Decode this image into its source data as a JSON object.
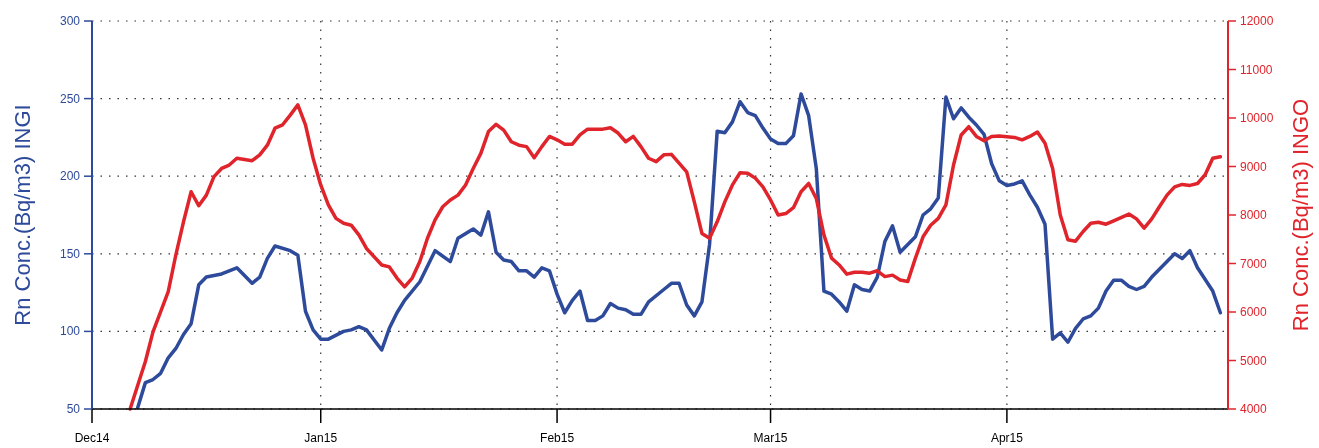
{
  "chart_data": {
    "type": "line",
    "ylabel": "Rn Conc.(Bq/m3) INGI",
    "y2label": "Rn Conc.(Bq/m3) INGO",
    "xlim": [
      "2014-12-02",
      "2015-04-30"
    ],
    "xticks": [
      {
        "value": "2014-12-02",
        "label": "Dec14"
      },
      {
        "value": "2015-01-01",
        "label": "Jan15"
      },
      {
        "value": "2015-02-01",
        "label": "Feb15"
      },
      {
        "value": "2015-03-01",
        "label": "Mar15"
      },
      {
        "value": "2015-04-01",
        "label": "Apr15"
      }
    ],
    "ylim": [
      50,
      300
    ],
    "yticks": [
      50,
      100,
      150,
      200,
      250,
      300
    ],
    "y2lim": [
      4000,
      12000
    ],
    "y2ticks": [
      4000,
      5000,
      6000,
      7000,
      8000,
      9000,
      10000,
      11000,
      12000
    ],
    "grid": true,
    "marker": "none",
    "line_style": "solid",
    "series": [
      {
        "color": "#2e4a9a",
        "x": [
          "2014-12-08",
          "2014-12-09",
          "2014-12-10",
          "2014-12-11",
          "2014-12-12",
          "2014-12-13",
          "2014-12-14",
          "2014-12-15",
          "2014-12-16",
          "2014-12-17",
          "2014-12-18",
          "2014-12-19",
          "2014-12-21",
          "2014-12-23",
          "2014-12-24",
          "2014-12-25",
          "2014-12-26",
          "2014-12-28",
          "2014-12-29",
          "2014-12-30",
          "2014-12-31",
          "2015-01-01",
          "2015-01-02",
          "2015-01-04",
          "2015-01-05",
          "2015-01-06",
          "2015-01-07",
          "2015-01-09",
          "2015-01-10",
          "2015-01-11",
          "2015-01-12",
          "2015-01-14",
          "2015-01-16",
          "2015-01-18",
          "2015-01-19",
          "2015-01-21",
          "2015-01-22",
          "2015-01-23",
          "2015-01-24",
          "2015-01-25",
          "2015-01-26",
          "2015-01-27",
          "2015-01-28",
          "2015-01-29",
          "2015-01-30",
          "2015-01-31",
          "2015-02-01",
          "2015-02-02",
          "2015-02-03",
          "2015-02-04",
          "2015-02-05",
          "2015-02-06",
          "2015-02-07",
          "2015-02-08",
          "2015-02-09",
          "2015-02-10",
          "2015-02-11",
          "2015-02-12",
          "2015-02-13",
          "2015-02-15",
          "2015-02-16",
          "2015-02-17",
          "2015-02-18",
          "2015-02-19",
          "2015-02-20",
          "2015-02-21",
          "2015-02-22",
          "2015-02-23",
          "2015-02-24",
          "2015-02-25",
          "2015-02-26",
          "2015-02-27",
          "2015-02-28",
          "2015-03-01",
          "2015-03-02",
          "2015-03-03",
          "2015-03-04",
          "2015-03-05",
          "2015-03-06",
          "2015-03-07",
          "2015-03-08",
          "2015-03-09",
          "2015-03-10",
          "2015-03-11",
          "2015-03-12",
          "2015-03-13",
          "2015-03-14",
          "2015-03-15",
          "2015-03-16",
          "2015-03-17",
          "2015-03-18",
          "2015-03-20",
          "2015-03-21",
          "2015-03-22",
          "2015-03-23",
          "2015-03-24",
          "2015-03-25",
          "2015-03-26",
          "2015-03-27",
          "2015-03-28",
          "2015-03-29",
          "2015-03-30",
          "2015-03-31",
          "2015-04-01",
          "2015-04-02",
          "2015-04-03",
          "2015-04-04",
          "2015-04-05",
          "2015-04-06",
          "2015-04-07",
          "2015-04-08",
          "2015-04-09",
          "2015-04-10",
          "2015-04-11",
          "2015-04-12",
          "2015-04-13",
          "2015-04-14",
          "2015-04-15",
          "2015-04-16",
          "2015-04-17",
          "2015-04-18",
          "2015-04-19",
          "2015-04-20",
          "2015-04-21",
          "2015-04-22",
          "2015-04-23",
          "2015-04-24",
          "2015-04-25",
          "2015-04-26",
          "2015-04-28",
          "2015-04-29"
        ],
        "values": [
          51,
          67,
          69,
          73,
          83,
          89,
          98,
          105,
          130,
          135,
          136,
          137,
          141,
          131,
          135,
          147,
          155,
          152,
          149,
          113,
          101,
          95,
          95,
          100,
          101,
          103,
          101,
          88,
          102,
          112,
          120,
          132,
          152,
          145,
          160,
          166,
          162,
          177,
          151,
          146,
          145,
          139,
          139,
          135,
          141,
          139,
          124,
          112,
          120,
          126,
          107,
          107,
          110,
          118,
          115,
          114,
          111,
          111,
          119,
          127,
          131,
          131,
          117,
          110,
          119,
          156,
          229,
          228,
          235,
          248,
          241,
          239,
          231,
          224,
          221,
          221,
          226,
          253,
          239,
          205,
          126,
          124,
          119,
          113,
          130,
          127,
          126,
          135,
          158,
          168,
          151,
          161,
          175,
          179,
          186,
          251,
          237,
          244,
          238,
          233,
          227,
          208,
          197,
          194,
          195,
          197,
          188,
          180,
          169,
          95,
          99,
          93,
          102,
          108,
          110,
          115,
          126,
          133,
          133,
          129,
          127,
          129,
          135,
          140,
          145,
          150,
          147,
          152,
          141,
          126,
          112
        ]
      },
      {
        "color": "#e0242b",
        "axis": "y2",
        "x": [
          "2014-12-07",
          "2014-12-09",
          "2014-12-10",
          "2014-12-12",
          "2014-12-13",
          "2014-12-14",
          "2014-12-15",
          "2014-12-16",
          "2014-12-17",
          "2014-12-18",
          "2014-12-19",
          "2014-12-20",
          "2014-12-21",
          "2014-12-23",
          "2014-12-24",
          "2014-12-25",
          "2014-12-26",
          "2014-12-27",
          "2014-12-28",
          "2014-12-29",
          "2014-12-30",
          "2014-12-31",
          "2015-01-01",
          "2015-01-02",
          "2015-01-03",
          "2015-01-04",
          "2015-01-05",
          "2015-01-06",
          "2015-01-07",
          "2015-01-09",
          "2015-01-10",
          "2015-01-11",
          "2015-01-12",
          "2015-01-13",
          "2015-01-14",
          "2015-01-15",
          "2015-01-16",
          "2015-01-17",
          "2015-01-18",
          "2015-01-19",
          "2015-01-20",
          "2015-01-21",
          "2015-01-22",
          "2015-01-23",
          "2015-01-24",
          "2015-01-25",
          "2015-01-26",
          "2015-01-27",
          "2015-01-28",
          "2015-01-29",
          "2015-01-30",
          "2015-01-31",
          "2015-02-01",
          "2015-02-02",
          "2015-02-03",
          "2015-02-04",
          "2015-02-05",
          "2015-02-07",
          "2015-02-08",
          "2015-02-09",
          "2015-02-10",
          "2015-02-11",
          "2015-02-12",
          "2015-02-13",
          "2015-02-14",
          "2015-02-15",
          "2015-02-16",
          "2015-02-18",
          "2015-02-19",
          "2015-02-20",
          "2015-02-21",
          "2015-02-22",
          "2015-02-23",
          "2015-02-24",
          "2015-02-25",
          "2015-02-26",
          "2015-02-27",
          "2015-02-28",
          "2015-03-01",
          "2015-03-02",
          "2015-03-03",
          "2015-03-04",
          "2015-03-05",
          "2015-03-06",
          "2015-03-07",
          "2015-03-08",
          "2015-03-09",
          "2015-03-10",
          "2015-03-11",
          "2015-03-12",
          "2015-03-13",
          "2015-03-14",
          "2015-03-15",
          "2015-03-16",
          "2015-03-17",
          "2015-03-18",
          "2015-03-19",
          "2015-03-20",
          "2015-03-21",
          "2015-03-22",
          "2015-03-23",
          "2015-03-24",
          "2015-03-25",
          "2015-03-26",
          "2015-03-27",
          "2015-03-28",
          "2015-03-29",
          "2015-03-30",
          "2015-03-31",
          "2015-04-02",
          "2015-04-03",
          "2015-04-04",
          "2015-04-05",
          "2015-04-06",
          "2015-04-07",
          "2015-04-08",
          "2015-04-09",
          "2015-04-10",
          "2015-04-11",
          "2015-04-12",
          "2015-04-13",
          "2015-04-14",
          "2015-04-15",
          "2015-04-17",
          "2015-04-18",
          "2015-04-19",
          "2015-04-20",
          "2015-04-21",
          "2015-04-22",
          "2015-04-23",
          "2015-04-24",
          "2015-04-25",
          "2015-04-26",
          "2015-04-27",
          "2015-04-28",
          "2015-04-29"
        ],
        "values": [
          4000,
          4980,
          5590,
          6420,
          7180,
          7860,
          8480,
          8190,
          8410,
          8790,
          8960,
          9030,
          9170,
          9120,
          9240,
          9440,
          9790,
          9860,
          10060,
          10270,
          9860,
          9170,
          8620,
          8210,
          7930,
          7830,
          7790,
          7590,
          7310,
          6970,
          6930,
          6700,
          6520,
          6700,
          7040,
          7520,
          7900,
          8170,
          8310,
          8410,
          8620,
          8960,
          9270,
          9720,
          9870,
          9750,
          9510,
          9440,
          9410,
          9180,
          9410,
          9620,
          9550,
          9460,
          9460,
          9650,
          9770,
          9770,
          9800,
          9690,
          9510,
          9620,
          9410,
          9170,
          9100,
          9240,
          9250,
          8890,
          8270,
          7620,
          7520,
          7860,
          8270,
          8620,
          8870,
          8860,
          8760,
          8580,
          8310,
          8000,
          8030,
          8150,
          8480,
          8650,
          8340,
          7590,
          7110,
          6970,
          6780,
          6820,
          6820,
          6800,
          6850,
          6730,
          6760,
          6660,
          6630,
          7110,
          7550,
          7790,
          7930,
          8210,
          9030,
          9650,
          9820,
          9620,
          9530,
          9620,
          9630,
          9600,
          9550,
          9620,
          9710,
          9480,
          8960,
          8000,
          7490,
          7460,
          7660,
          7830,
          7850,
          7810,
          7880,
          8020,
          7920,
          7730,
          7920,
          8170,
          8410,
          8580,
          8630,
          8610,
          8650,
          8830,
          9170,
          9200
        ]
      }
    ]
  }
}
